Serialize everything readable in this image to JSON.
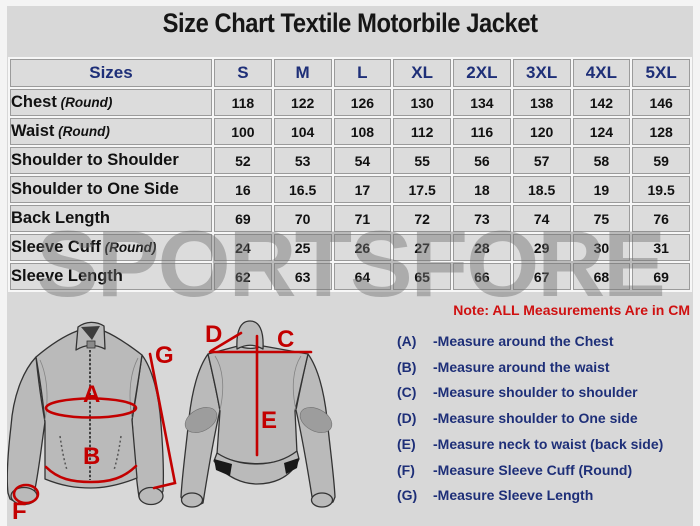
{
  "title": "Size Chart Textile Motorbile Jacket",
  "watermark": "SPORTSFORE",
  "table": {
    "columns": [
      "Sizes",
      "S",
      "M",
      "L",
      "XL",
      "2XL",
      "3XL",
      "4XL",
      "5XL"
    ],
    "rows": [
      {
        "label": "Chest",
        "suffix": "(Round)",
        "values": [
          "118",
          "122",
          "126",
          "130",
          "134",
          "138",
          "142",
          "146"
        ]
      },
      {
        "label": "Waist",
        "suffix": "(Round)",
        "values": [
          "100",
          "104",
          "108",
          "112",
          "116",
          "120",
          "124",
          "128"
        ]
      },
      {
        "label": "Shoulder to Shoulder",
        "suffix": "",
        "values": [
          "52",
          "53",
          "54",
          "55",
          "56",
          "57",
          "58",
          "59"
        ]
      },
      {
        "label": "Shoulder to One Side",
        "suffix": "",
        "values": [
          "16",
          "16.5",
          "17",
          "17.5",
          "18",
          "18.5",
          "19",
          "19.5"
        ]
      },
      {
        "label": "Back Length",
        "suffix": "",
        "values": [
          "69",
          "70",
          "71",
          "72",
          "73",
          "74",
          "75",
          "76"
        ]
      },
      {
        "label": "Sleeve Cuff",
        "suffix": "(Round)",
        "values": [
          "24",
          "25",
          "26",
          "27",
          "28",
          "29",
          "30",
          "31"
        ]
      },
      {
        "label": "Sleeve Length",
        "suffix": "",
        "values": [
          "62",
          "63",
          "64",
          "65",
          "66",
          "67",
          "68",
          "69"
        ]
      }
    ]
  },
  "note": "Note: ALL Measurements Are in CM",
  "legend": [
    {
      "key": "(A)",
      "text": "-Measure around the Chest"
    },
    {
      "key": "(B)",
      "text": "-Measure around the waist"
    },
    {
      "key": "(C)",
      "text": "-Measure shoulder to shoulder"
    },
    {
      "key": "(D)",
      "text": "-Measure shoulder to One side"
    },
    {
      "key": "(E)",
      "text": "-Measure neck to waist (back side)"
    },
    {
      "key": "(F)",
      "text": "-Measure Sleeve Cuff (Round)"
    },
    {
      "key": "(G)",
      "text": "-Measure Sleeve Length"
    }
  ],
  "diagram": {
    "front_labels": {
      "chest": "A",
      "waist": "B",
      "cuff": "F",
      "sleeve_length": "G"
    },
    "back_labels": {
      "shoulder": "C",
      "one_side": "D",
      "back_length": "E"
    }
  },
  "colors": {
    "accent_red": "#c30000",
    "navy": "#1e2f78",
    "jacket_gray": "#bababa",
    "background": "#d8d8d8"
  }
}
